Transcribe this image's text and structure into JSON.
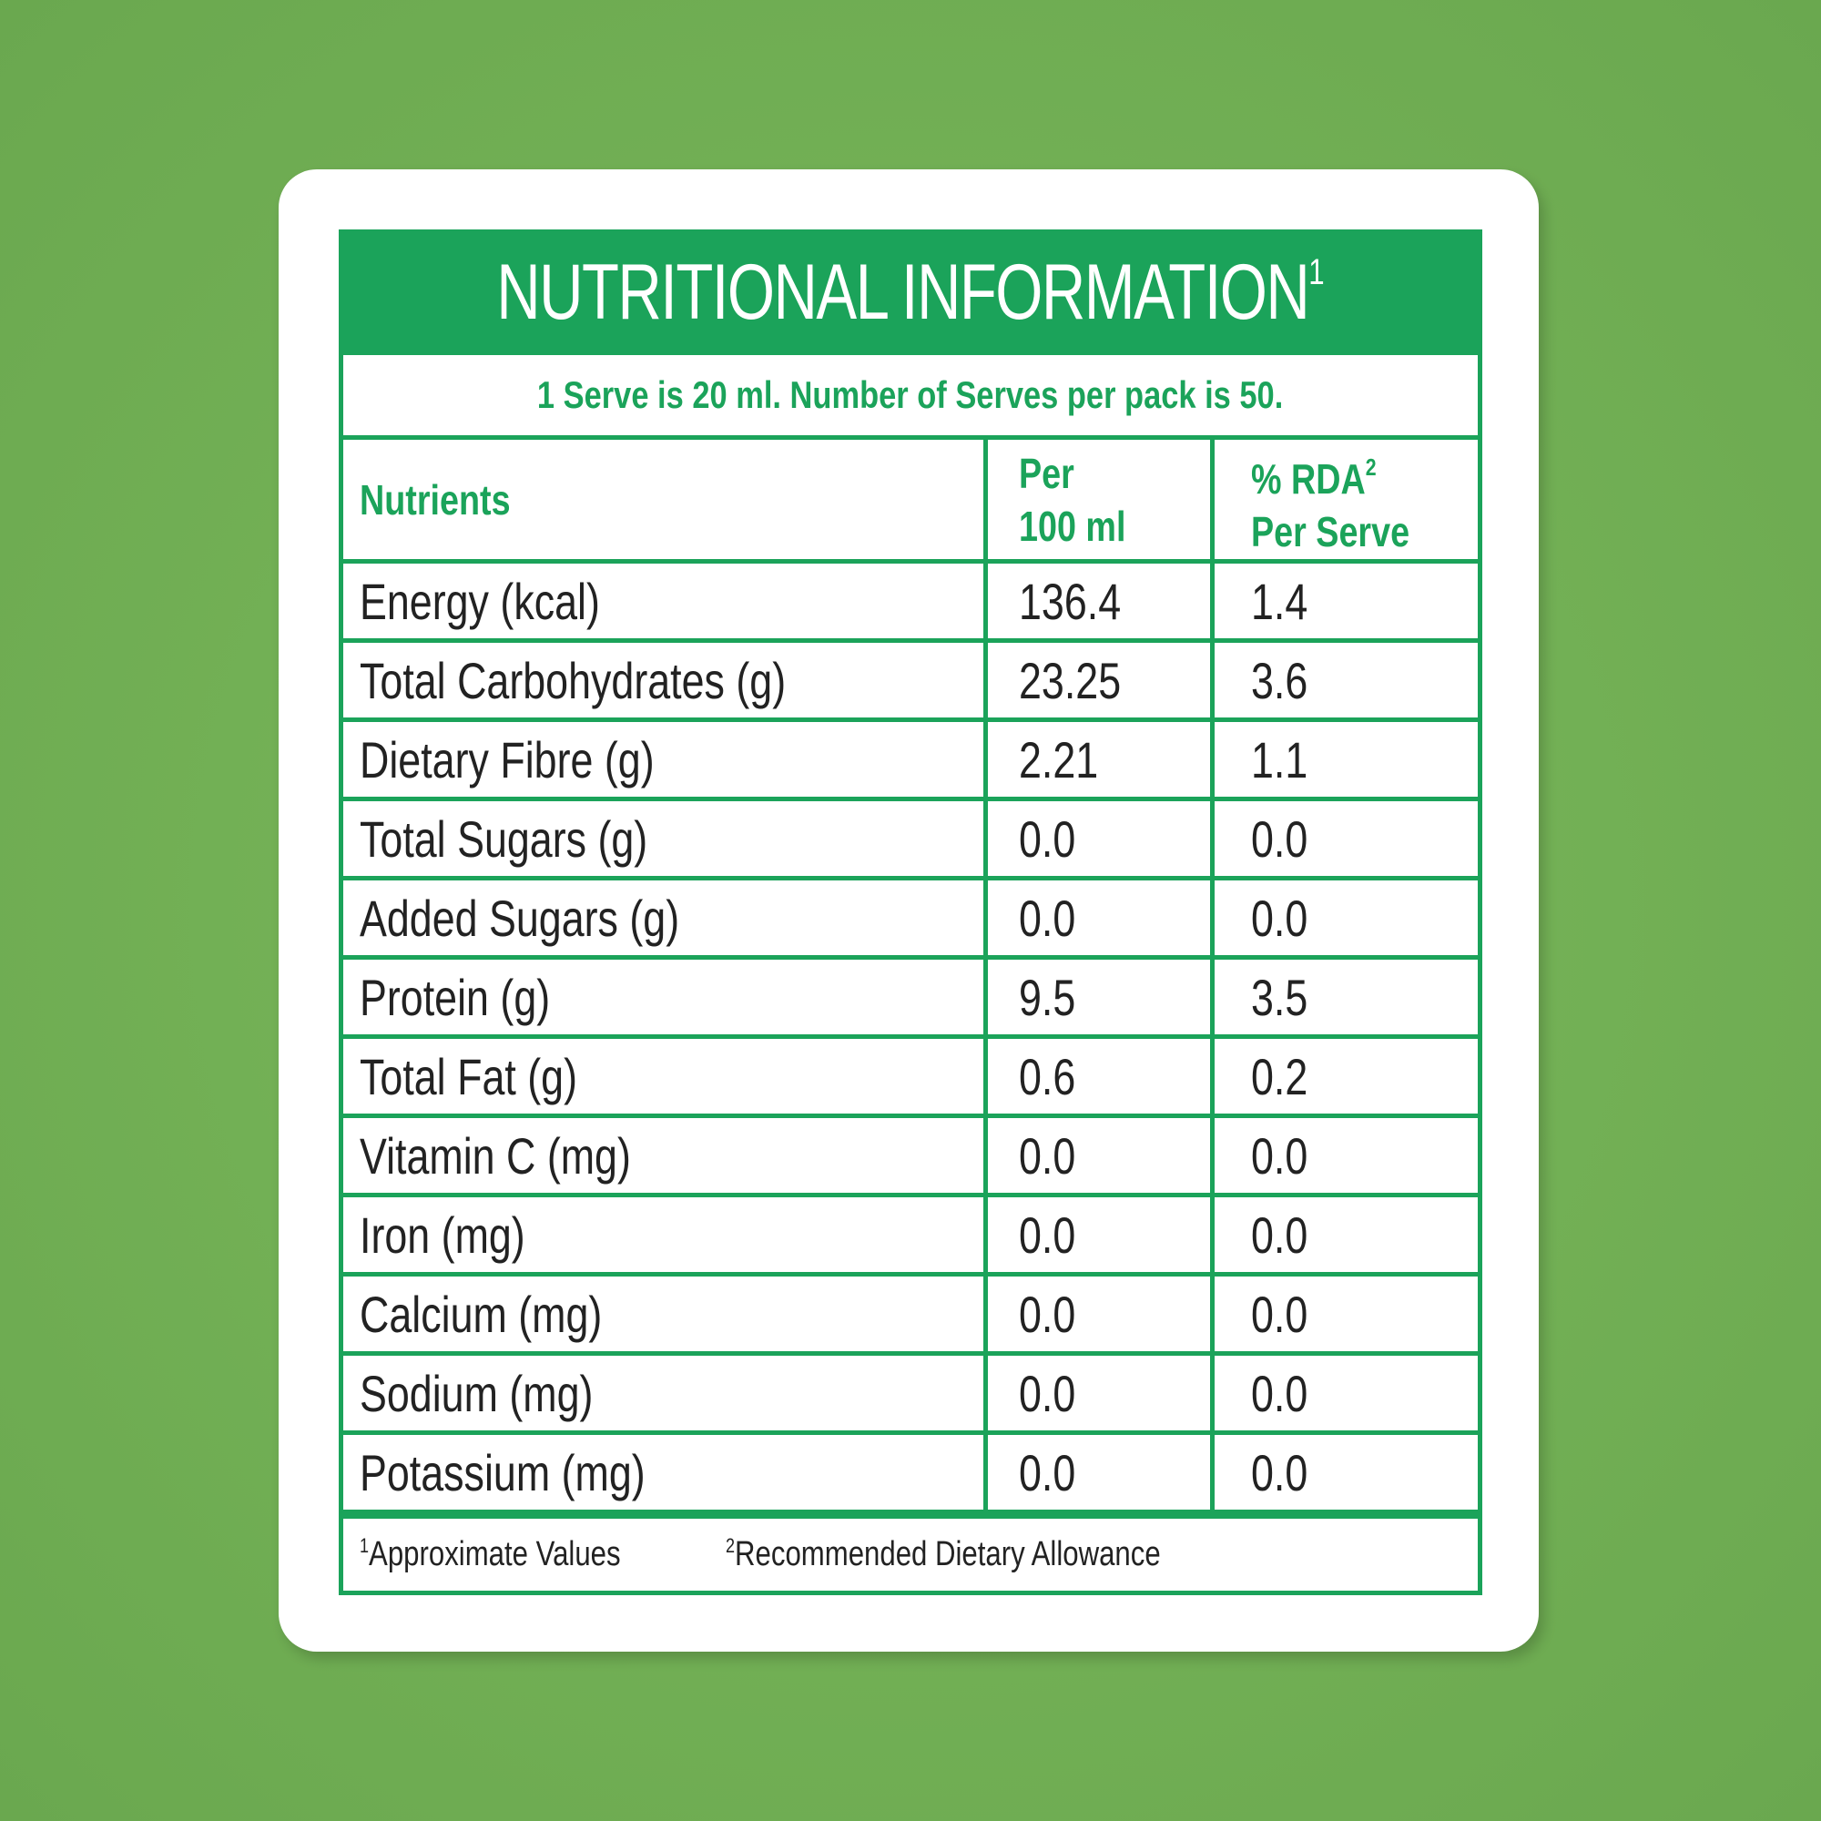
{
  "label": {
    "title": "NUTRITIONAL INFORMATION",
    "title_sup": "1",
    "serving_note": "1 Serve is 20 ml. Number of Serves per pack is 50.",
    "columns": {
      "nutrients": "Nutrients",
      "per_100_line1": "Per",
      "per_100_line2": "100 ml",
      "rda_line1": "% RDA",
      "rda_sup": "2",
      "rda_line2": "Per Serve"
    },
    "rows": [
      {
        "name": "Energy (kcal)",
        "per100": "136.4",
        "rda": "1.4"
      },
      {
        "name": "Total Carbohydrates (g)",
        "per100": "23.25",
        "rda": "3.6"
      },
      {
        "name": "Dietary Fibre (g)",
        "per100": "2.21",
        "rda": "1.1"
      },
      {
        "name": "Total Sugars (g)",
        "per100": "0.0",
        "rda": "0.0"
      },
      {
        "name": "Added Sugars (g)",
        "per100": "0.0",
        "rda": "0.0"
      },
      {
        "name": "Protein (g)",
        "per100": "9.5",
        "rda": "3.5"
      },
      {
        "name": "Total Fat (g)",
        "per100": "0.6",
        "rda": "0.2"
      },
      {
        "name": "Vitamin C (mg)",
        "per100": "0.0",
        "rda": "0.0"
      },
      {
        "name": "Iron (mg)",
        "per100": "0.0",
        "rda": "0.0"
      },
      {
        "name": "Calcium (mg)",
        "per100": "0.0",
        "rda": "0.0"
      },
      {
        "name": "Sodium (mg)",
        "per100": "0.0",
        "rda": "0.0"
      },
      {
        "name": "Potassium (mg)",
        "per100": "0.0",
        "rda": "0.0"
      }
    ],
    "footnotes": [
      {
        "sup": "1",
        "text": "Approximate Values"
      },
      {
        "sup": "2",
        "text": "Recommended Dietary Allowance"
      }
    ]
  },
  "colors": {
    "background": "#6aa84f",
    "accent_green": "#1ba35a",
    "card": "#ffffff",
    "text": "#222222"
  }
}
